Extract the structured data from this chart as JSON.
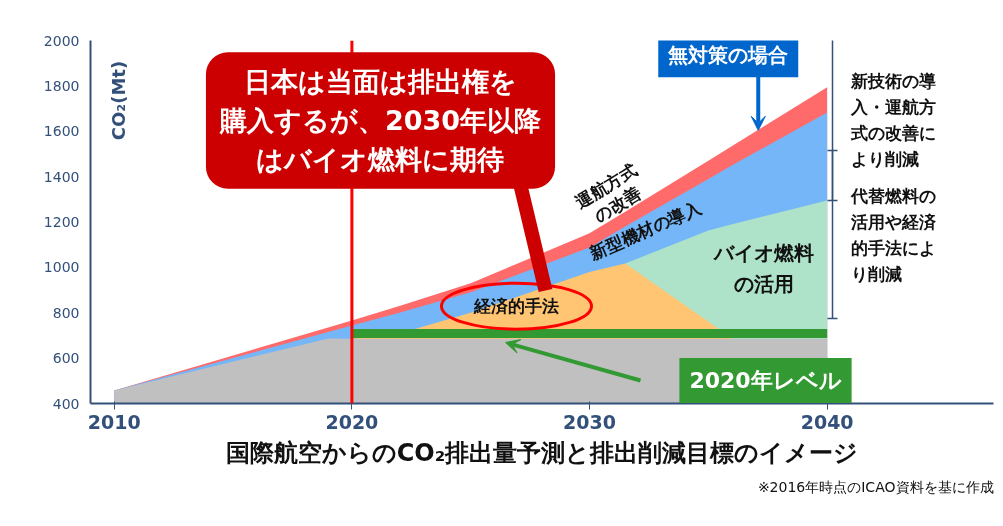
{
  "chart_data": {
    "type": "area",
    "title": "国際航空からのCO₂排出量予測と排出削減目標のイメージ",
    "ylabel": "CO₂(Mt)",
    "x": [
      2010,
      2019,
      2020,
      2022,
      2025,
      2030,
      2031.5,
      2035,
      2036,
      2040
    ],
    "xlim": [
      2009,
      2047
    ],
    "ylim": [
      400,
      2000
    ],
    "xticks": [
      2010,
      2020,
      2030,
      2040
    ],
    "yticks": [
      400,
      600,
      800,
      1000,
      1200,
      1400,
      1600,
      1800,
      2000
    ],
    "grid": false,
    "legend": false,
    "series": [
      {
        "name": "運航方式の改善",
        "color": "#ff6b6b",
        "values": [
          457,
          735,
          766,
          830,
          930,
          1150,
          1245,
          1470,
          1535,
          1794
        ]
      },
      {
        "name": "新型機材の導入",
        "color": "#74b6f7",
        "values": [
          457,
          715,
          744,
          800,
          890,
          1088,
          1180,
          1390,
          1450,
          1683
        ]
      },
      {
        "name": "バイオ燃料の活用",
        "color": "#aee3c9",
        "values": [
          null,
          null,
          null,
          null,
          null,
          null,
          1017,
          1163,
          1190,
          1295
        ]
      },
      {
        "name": "経済的手法",
        "color": "#ffc572",
        "values": [
          null,
          null,
          685,
          709,
          800,
          980,
          1017,
          760,
          685,
          null
        ]
      },
      {
        "color": "#c0c0c0",
        "values": [
          457,
          687,
          685,
          685,
          685,
          685,
          685,
          685,
          685,
          685
        ]
      },
      {
        "type": "line",
        "color": "#339933",
        "x": [
          2020,
          2040
        ],
        "values": [
          709,
          709
        ]
      }
    ],
    "ref_lines": [
      {
        "axis": "x",
        "value": 2020,
        "color": "#ff0000"
      }
    ],
    "annotations": [
      {
        "text": "無対策の場合",
        "x": 2037.1,
        "y": 1604
      },
      "日本は当面は排出権を購入するが、2030年以降はバイオ燃料に期待",
      "2020年レベル",
      "新技術の導入・運航方式の改善により削減",
      "代替燃料の活用や経済的手法により削減",
      "※2016年時点のICAO資料を基に作成"
    ]
  }
}
